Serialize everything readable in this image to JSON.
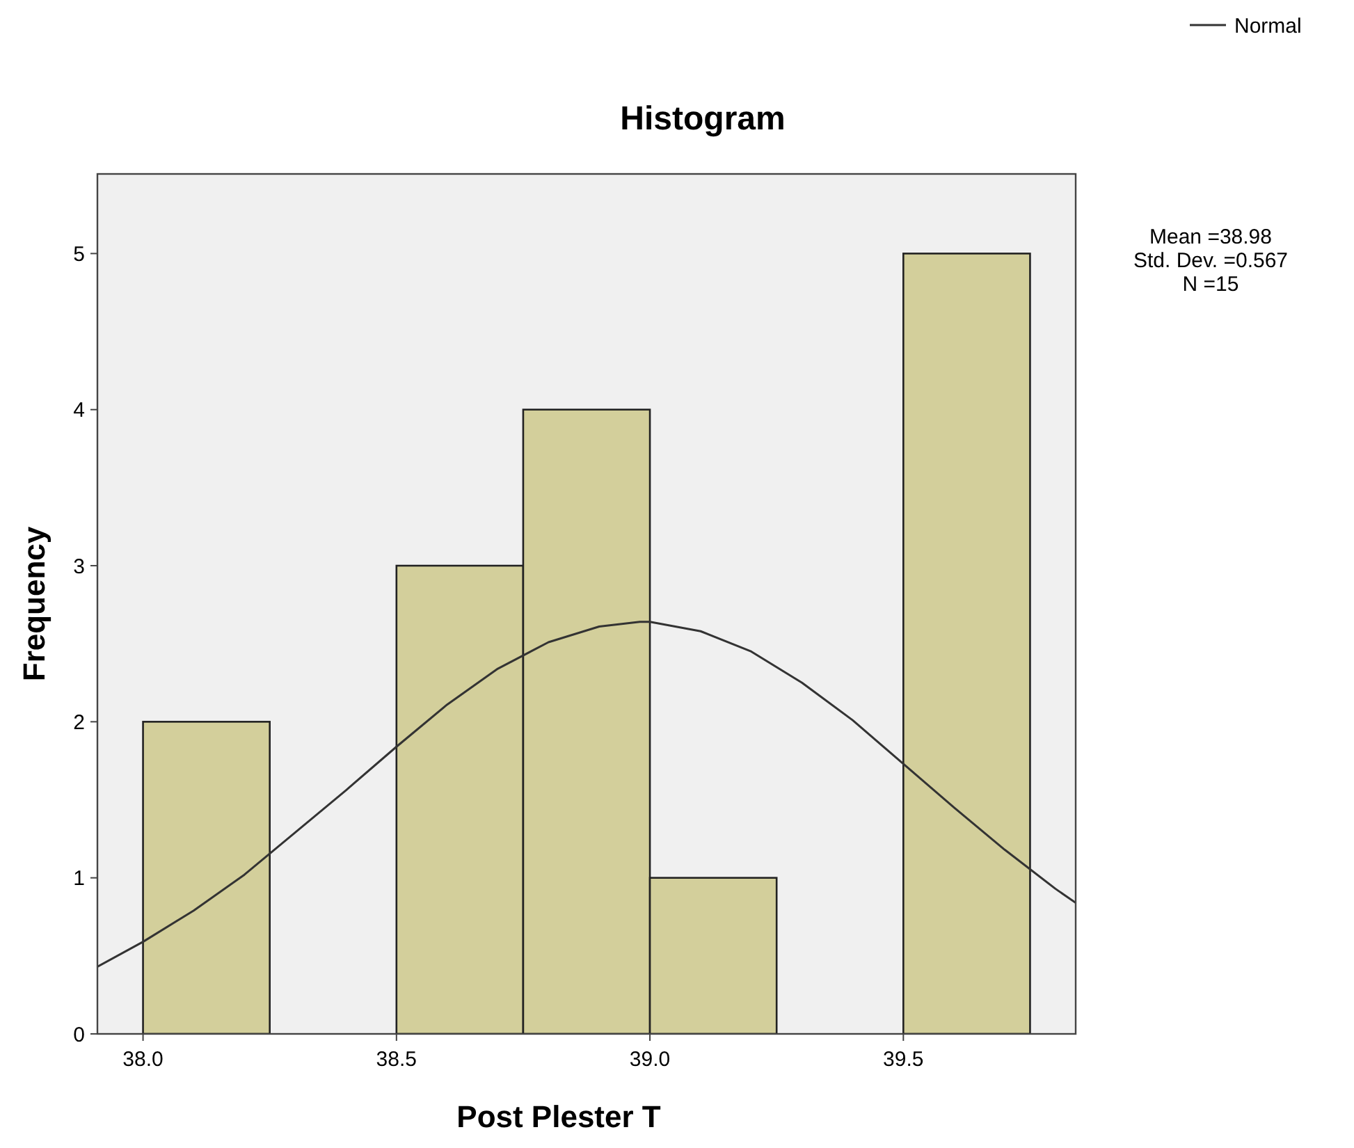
{
  "chart_data": {
    "type": "histogram",
    "title": "Histogram",
    "xlabel": "Post Plester T",
    "ylabel": "Frequency",
    "bins": [
      38.0,
      38.25,
      38.5,
      38.75,
      39.0,
      39.25,
      39.5,
      39.75
    ],
    "values": [
      2,
      0,
      3,
      4,
      1,
      0,
      5
    ],
    "color": "#d3cf9b",
    "series": [
      {
        "type": "line",
        "name": "Normal",
        "color": "#333333",
        "x": [
          37.91,
          38.0,
          38.1,
          38.2,
          38.3,
          38.4,
          38.5,
          38.6,
          38.7,
          38.8,
          38.9,
          38.98,
          39.0,
          39.1,
          39.2,
          39.3,
          39.4,
          39.5,
          39.6,
          39.7,
          39.8,
          39.84
        ],
        "values": [
          0.43,
          0.59,
          0.79,
          1.02,
          1.29,
          1.56,
          1.84,
          2.11,
          2.34,
          2.51,
          2.61,
          2.64,
          2.64,
          2.58,
          2.45,
          2.25,
          2.01,
          1.73,
          1.45,
          1.18,
          0.93,
          0.84
        ]
      }
    ],
    "xlim": [
      37.91,
      39.84
    ],
    "xticks": [
      {
        "value": 38.0,
        "label": "38.0"
      },
      {
        "value": 38.5,
        "label": "38.5"
      },
      {
        "value": 39.0,
        "label": "39.0"
      },
      {
        "value": 39.5,
        "label": "39.5"
      }
    ],
    "ylim": [
      0,
      5.51
    ],
    "yticks": [
      0,
      1,
      2,
      3,
      4,
      5
    ],
    "grid": false,
    "legend": "top right",
    "marker": "none",
    "line_style": "solid",
    "annotations": [
      "Mean =38.98",
      "Std. Dev. =0.567",
      "N =15"
    ]
  }
}
